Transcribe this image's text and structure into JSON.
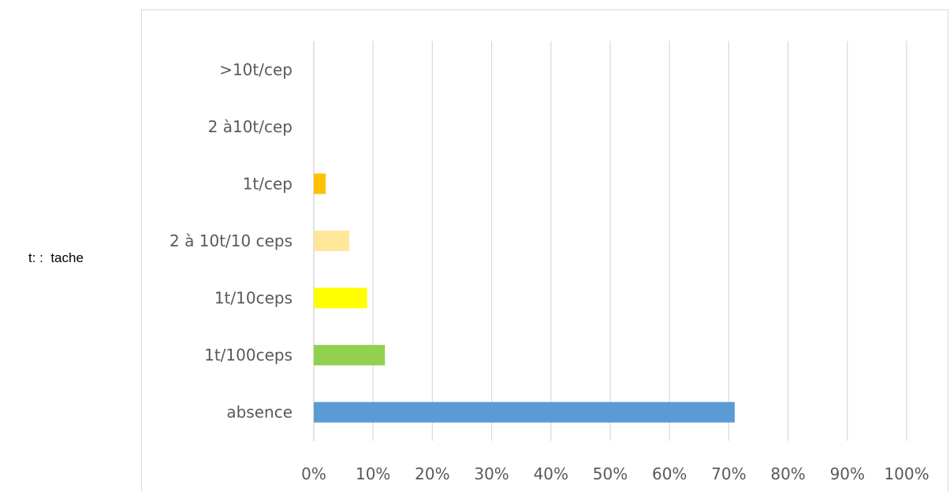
{
  "side_note": "t: :  tache",
  "chart_data": {
    "type": "bar",
    "orientation": "horizontal",
    "categories": [
      "absence",
      "1t/100ceps",
      "1t/10ceps",
      "2 à 10t/10 ceps",
      "1t/cep",
      "2 à10t/cep",
      ">10t/cep"
    ],
    "values": [
      0.71,
      0.12,
      0.09,
      0.06,
      0.02,
      0,
      0
    ],
    "colors": [
      "#5b9bd5",
      "#92d050",
      "#ffff00",
      "#ffe699",
      "#ffc000",
      "#ffc000",
      "#ffc000"
    ],
    "xlim": [
      0,
      1
    ],
    "x_ticks": [
      "0%",
      "10%",
      "20%",
      "30%",
      "40%",
      "50%",
      "60%",
      "70%",
      "80%",
      "90%",
      "100%"
    ],
    "grid": "vertical",
    "legend": "none",
    "gridline_color": "#d9d9d9",
    "title": "",
    "xlabel": "",
    "ylabel": ""
  }
}
